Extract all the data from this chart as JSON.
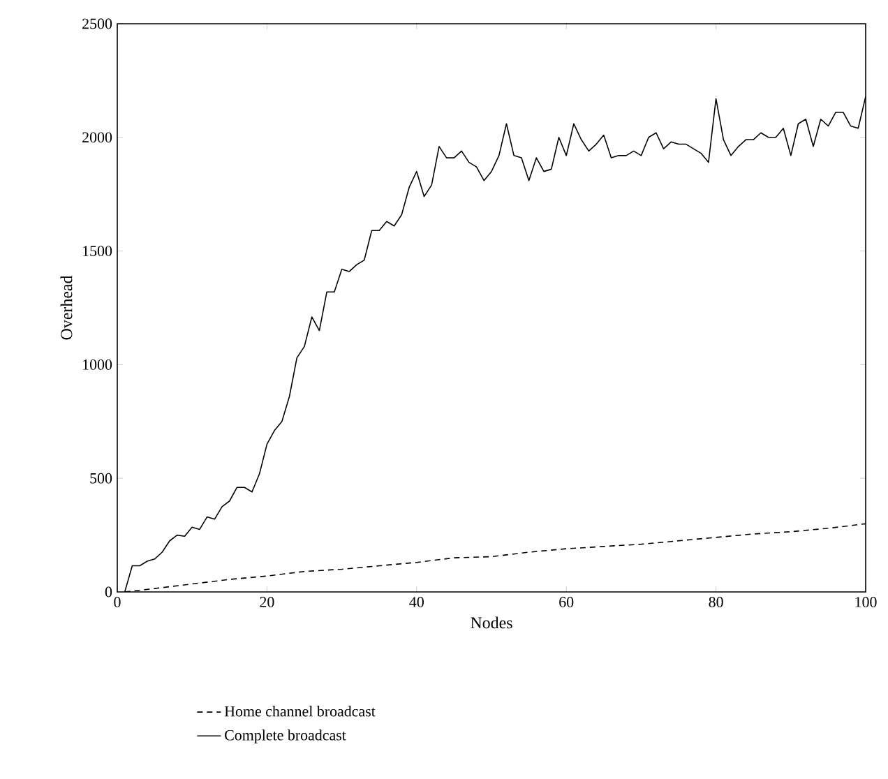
{
  "chart_data": {
    "type": "line",
    "xlabel": "Nodes",
    "ylabel": "Overhead",
    "xlim": [
      0,
      100
    ],
    "xticks": [
      0,
      20,
      40,
      60,
      80,
      100
    ],
    "ylim": [
      0,
      2500
    ],
    "yticks": [
      0,
      500,
      1000,
      1500,
      2000,
      2500
    ],
    "grid": false,
    "legend": "bottom",
    "marker": "none",
    "series": [
      {
        "name": "Home channel broadcast",
        "color": "#000000",
        "line_style": "dashed",
        "x": [
          1,
          5,
          10,
          15,
          20,
          25,
          30,
          35,
          40,
          45,
          50,
          55,
          60,
          65,
          70,
          75,
          80,
          85,
          90,
          95,
          100
        ],
        "values": [
          0,
          15,
          35,
          55,
          70,
          90,
          100,
          115,
          130,
          150,
          155,
          175,
          190,
          200,
          210,
          225,
          240,
          255,
          265,
          280,
          300
        ]
      },
      {
        "name": "Complete broadcast",
        "color": "#000000",
        "line_style": "solid",
        "x": [
          1,
          2,
          3,
          4,
          5,
          6,
          7,
          8,
          9,
          10,
          11,
          12,
          13,
          14,
          15,
          16,
          17,
          18,
          19,
          20,
          21,
          22,
          23,
          24,
          25,
          26,
          27,
          28,
          29,
          30,
          31,
          32,
          33,
          34,
          35,
          36,
          37,
          38,
          39,
          40,
          41,
          42,
          43,
          44,
          45,
          46,
          47,
          48,
          49,
          50,
          51,
          52,
          53,
          54,
          55,
          56,
          57,
          58,
          59,
          60,
          61,
          62,
          63,
          64,
          65,
          66,
          67,
          68,
          69,
          70,
          71,
          72,
          73,
          74,
          75,
          76,
          77,
          78,
          79,
          80,
          81,
          82,
          83,
          84,
          85,
          86,
          87,
          88,
          89,
          90,
          91,
          92,
          93,
          94,
          95,
          96,
          97,
          98,
          99,
          100
        ],
        "values": [
          0,
          115,
          115,
          135,
          145,
          175,
          225,
          250,
          245,
          285,
          275,
          330,
          320,
          375,
          400,
          460,
          460,
          440,
          520,
          650,
          710,
          750,
          860,
          1030,
          1080,
          1210,
          1150,
          1320,
          1320,
          1420,
          1410,
          1440,
          1460,
          1590,
          1590,
          1630,
          1610,
          1660,
          1780,
          1850,
          1740,
          1790,
          1960,
          1910,
          1910,
          1940,
          1890,
          1870,
          1810,
          1850,
          1920,
          2060,
          1920,
          1910,
          1810,
          1910,
          1850,
          1860,
          2000,
          1920,
          2060,
          1990,
          1940,
          1970,
          2010,
          1910,
          1920,
          1920,
          1940,
          1920,
          2000,
          2020,
          1950,
          1980,
          1970,
          1970,
          1950,
          1930,
          1890,
          2170,
          1990,
          1920,
          1960,
          1990,
          1990,
          2020,
          2000,
          2000,
          2040,
          1920,
          2060,
          2080,
          1960,
          2080,
          2050,
          2110,
          2110,
          2050,
          2040,
          2180
        ]
      }
    ]
  }
}
